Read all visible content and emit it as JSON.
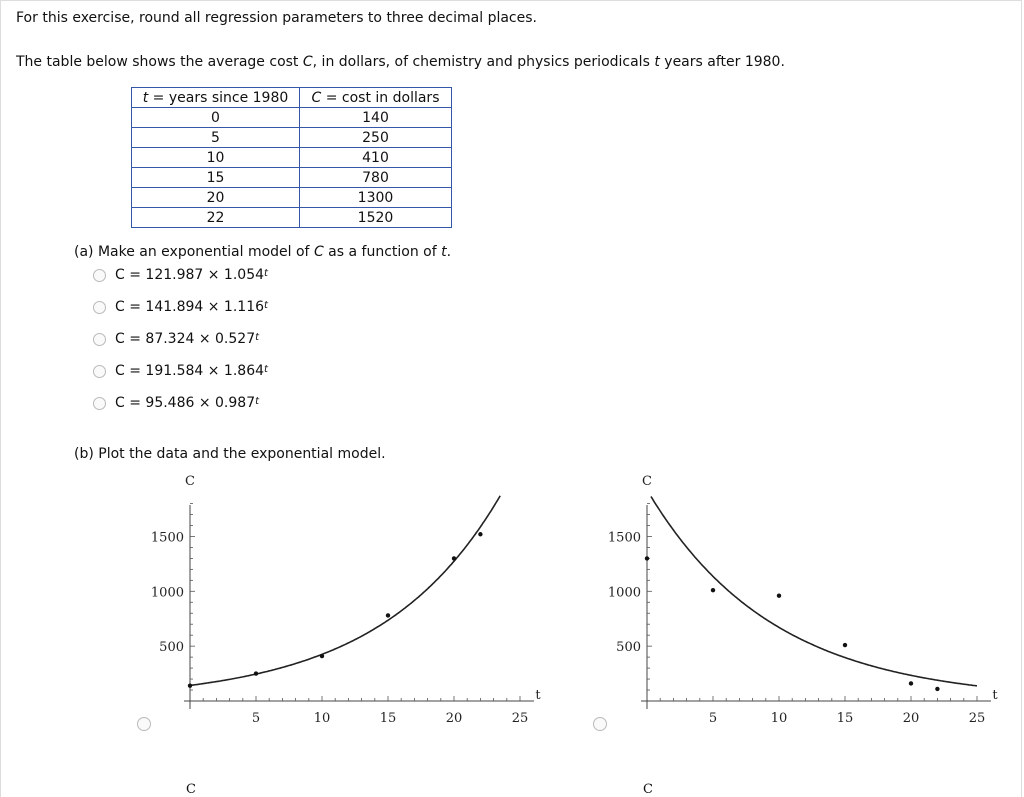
{
  "instructions": "For this exercise, round all regression parameters to three decimal places.",
  "intro": {
    "before_c": "The table below shows the average cost ",
    "c_var": "C",
    "middle": ", in dollars, of chemistry and physics periodicals ",
    "t_var": "t",
    "after": " years after 1980."
  },
  "table": {
    "header_t_var": "t",
    "header_t_rest": " = years since 1980",
    "header_c_var": "C",
    "header_c_rest": " = cost in dollars",
    "rows": [
      {
        "t": "0",
        "c": "140"
      },
      {
        "t": "5",
        "c": "250"
      },
      {
        "t": "10",
        "c": "410"
      },
      {
        "t": "15",
        "c": "780"
      },
      {
        "t": "20",
        "c": "1300"
      },
      {
        "t": "22",
        "c": "1520"
      }
    ]
  },
  "part_a": {
    "prompt_before": "(a) Make an exponential model of ",
    "prompt_c": "C",
    "prompt_mid": " as a function of ",
    "prompt_t": "t",
    "prompt_end": ".",
    "options": [
      {
        "text": "C = 121.987 × 1.054",
        "exp": "t"
      },
      {
        "text": "C = 141.894 × 1.116",
        "exp": "t"
      },
      {
        "text": "C = 87.324 × 0.527",
        "exp": "t"
      },
      {
        "text": "C = 191.584 × 1.864",
        "exp": "t"
      },
      {
        "text": "C = 95.486 × 0.987",
        "exp": "t"
      }
    ]
  },
  "part_b": {
    "prompt": "(b) Plot the data and the exponential model."
  },
  "chart_data": [
    {
      "type": "scatter",
      "ylabel": "C",
      "xlabel": "t",
      "xlim": [
        0,
        25
      ],
      "ylim": [
        0,
        1800
      ],
      "xticks": [
        "5",
        "10",
        "15",
        "20",
        "25"
      ],
      "yticks": [
        "500",
        "1000",
        "1500"
      ],
      "points": [
        [
          0,
          140
        ],
        [
          5,
          250
        ],
        [
          10,
          410
        ],
        [
          15,
          780
        ],
        [
          20,
          1300
        ],
        [
          22,
          1520
        ]
      ],
      "curve": {
        "a": 141.894,
        "b": 1.116
      }
    },
    {
      "type": "scatter",
      "ylabel": "C",
      "xlabel": "t",
      "xlim": [
        0,
        25
      ],
      "ylim": [
        0,
        1800
      ],
      "xticks": [
        "5",
        "10",
        "15",
        "20",
        "25"
      ],
      "yticks": [
        "500",
        "1000",
        "1500"
      ],
      "points": [
        [
          0,
          1300
        ],
        [
          5,
          1010
        ],
        [
          10,
          960
        ],
        [
          15,
          510
        ],
        [
          20,
          160
        ],
        [
          22,
          110
        ]
      ],
      "curve": {
        "a": 1924,
        "b": 0.9
      }
    }
  ],
  "lower_charts_ylabel": [
    "C",
    "C"
  ]
}
